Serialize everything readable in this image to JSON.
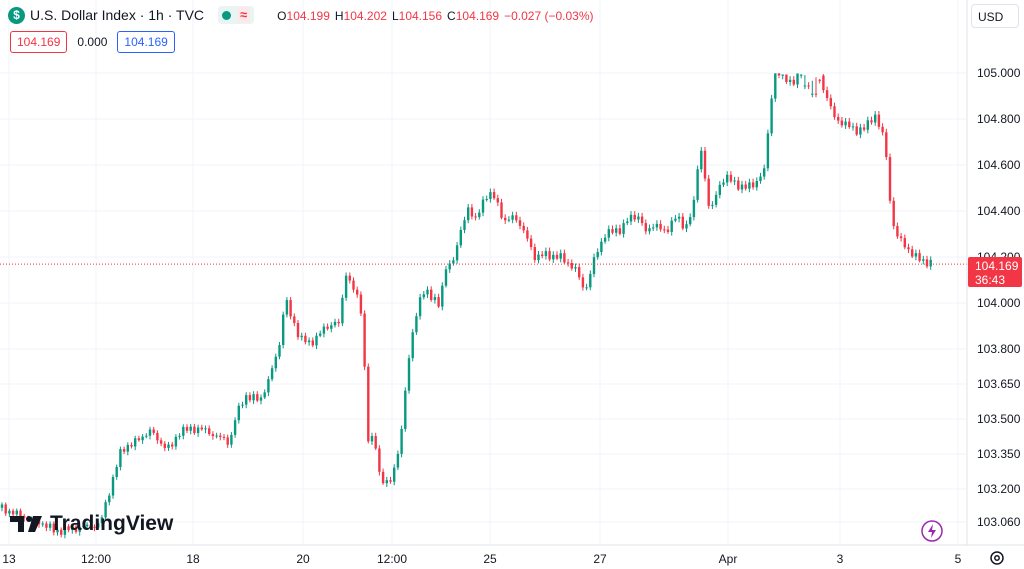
{
  "header": {
    "icon_glyph": "$",
    "title": "U.S. Dollar Index · 1h · TVC",
    "indicators_glyph": "≈",
    "ohlc": [
      {
        "label": "O",
        "value": "104.199"
      },
      {
        "label": "H",
        "value": "104.202"
      },
      {
        "label": "L",
        "value": "104.156"
      },
      {
        "label": "C",
        "value": "104.169"
      },
      {
        "label": "",
        "value": "−0.027 (−0.03%)"
      }
    ]
  },
  "quote": {
    "bid": "104.169",
    "spread": "0.000",
    "ask": "104.169"
  },
  "currency_selector": {
    "label": "USD"
  },
  "branding": {
    "name": "TradingView"
  },
  "last_price": {
    "value": "104.169",
    "countdown": "36:43"
  },
  "colors": {
    "up": "#089981",
    "down": "#f23645",
    "grid": "#f0f3fa",
    "axis_text": "#131722"
  },
  "icons": {
    "flash": "flash-icon",
    "settings": "settings-gear-icon"
  },
  "chart_data": {
    "type": "candlestick",
    "y_axis_ticks": [
      "105.000",
      "104.800",
      "104.600",
      "104.400",
      "104.200",
      "104.000",
      "103.800",
      "103.650",
      "103.500",
      "103.350",
      "103.200",
      "103.060"
    ],
    "x_axis_ticks": [
      "13",
      "12:00",
      "18",
      "20",
      "12:00",
      "25",
      "27",
      "Apr",
      "3",
      "5"
    ],
    "last_close": 104.169,
    "close_path": [
      [
        0,
        103.12
      ],
      [
        45,
        103.05
      ],
      [
        55,
        103.02
      ],
      [
        100,
        103.05
      ],
      [
        110,
        103.2
      ],
      [
        120,
        103.35
      ],
      [
        125,
        103.38
      ],
      [
        135,
        103.4
      ],
      [
        150,
        103.45
      ],
      [
        160,
        103.4
      ],
      [
        170,
        103.37
      ],
      [
        180,
        103.45
      ],
      [
        200,
        103.46
      ],
      [
        210,
        103.44
      ],
      [
        220,
        103.42
      ],
      [
        230,
        103.4
      ],
      [
        235,
        103.5
      ],
      [
        245,
        103.6
      ],
      [
        260,
        103.58
      ],
      [
        270,
        103.68
      ],
      [
        280,
        103.83
      ],
      [
        285,
        104.03
      ],
      [
        290,
        103.95
      ],
      [
        300,
        103.85
      ],
      [
        310,
        103.82
      ],
      [
        320,
        103.87
      ],
      [
        335,
        103.92
      ],
      [
        340,
        103.9
      ],
      [
        345,
        104.14
      ],
      [
        355,
        104.05
      ],
      [
        362,
        103.95
      ],
      [
        368,
        103.42
      ],
      [
        375,
        103.4
      ],
      [
        380,
        103.25
      ],
      [
        390,
        103.22
      ],
      [
        395,
        103.3
      ],
      [
        400,
        103.4
      ],
      [
        405,
        103.6
      ],
      [
        410,
        103.8
      ],
      [
        418,
        104.0
      ],
      [
        425,
        104.05
      ],
      [
        435,
        104.02
      ],
      [
        440,
        103.98
      ],
      [
        445,
        104.15
      ],
      [
        455,
        104.2
      ],
      [
        460,
        104.3
      ],
      [
        468,
        104.42
      ],
      [
        475,
        104.35
      ],
      [
        485,
        104.47
      ],
      [
        495,
        104.46
      ],
      [
        505,
        104.35
      ],
      [
        515,
        104.38
      ],
      [
        525,
        104.3
      ],
      [
        535,
        104.2
      ],
      [
        545,
        104.21
      ],
      [
        560,
        104.2
      ],
      [
        575,
        104.15
      ],
      [
        585,
        104.05
      ],
      [
        595,
        104.2
      ],
      [
        605,
        104.3
      ],
      [
        620,
        104.32
      ],
      [
        630,
        104.37
      ],
      [
        640,
        104.38
      ],
      [
        645,
        104.3
      ],
      [
        655,
        104.35
      ],
      [
        665,
        104.3
      ],
      [
        675,
        104.38
      ],
      [
        685,
        104.32
      ],
      [
        695,
        104.45
      ],
      [
        700,
        104.7
      ],
      [
        705,
        104.55
      ],
      [
        710,
        104.38
      ],
      [
        718,
        104.5
      ],
      [
        725,
        104.55
      ],
      [
        735,
        104.52
      ],
      [
        745,
        104.5
      ],
      [
        755,
        104.52
      ],
      [
        765,
        104.58
      ],
      [
        770,
        104.85
      ],
      [
        775,
        105.0
      ],
      [
        782,
        104.98
      ],
      [
        795,
        104.96
      ],
      [
        805,
        105.05
      ],
      [
        812,
        105.08
      ],
      [
        820,
        104.98
      ],
      [
        828,
        104.88
      ],
      [
        835,
        104.8
      ],
      [
        845,
        104.78
      ],
      [
        855,
        104.75
      ],
      [
        865,
        104.76
      ],
      [
        875,
        104.82
      ],
      [
        885,
        104.7
      ],
      [
        890,
        104.45
      ],
      [
        895,
        104.3
      ],
      [
        905,
        104.25
      ],
      [
        915,
        104.2
      ],
      [
        925,
        104.18
      ],
      [
        935,
        104.169
      ]
    ]
  }
}
